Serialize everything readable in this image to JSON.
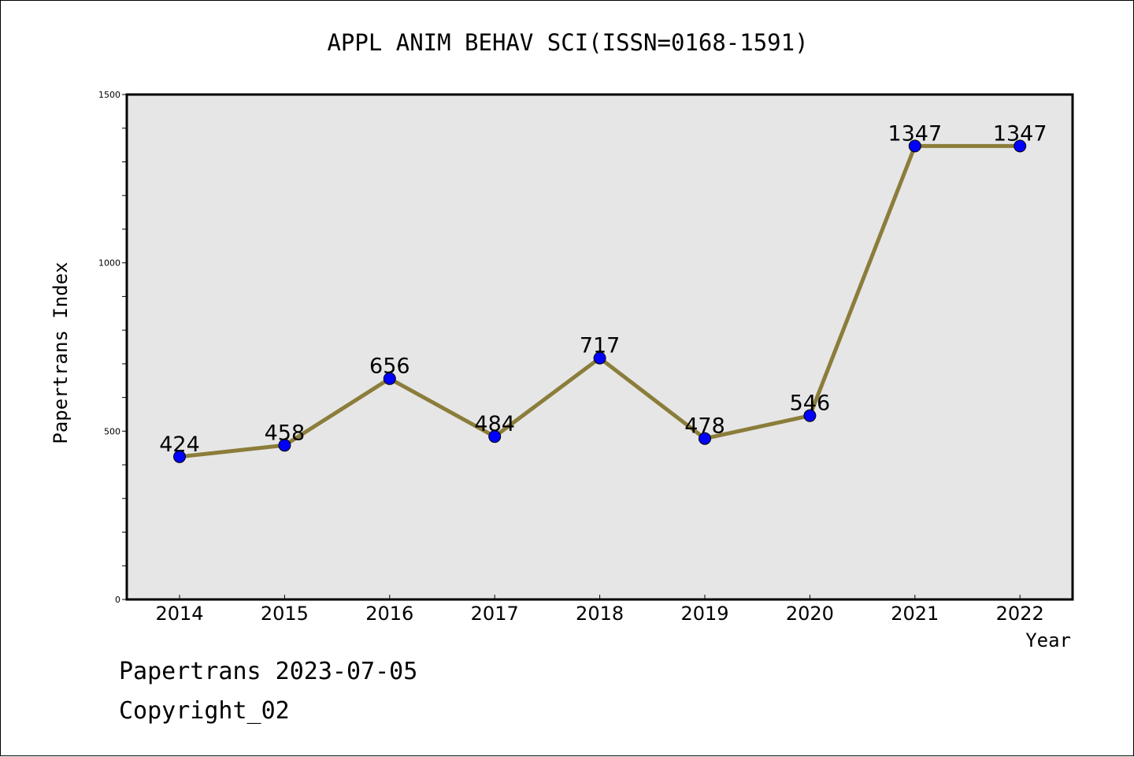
{
  "chart_data": {
    "type": "line",
    "title": "APPL ANIM BEHAV SCI(ISSN=0168-1591)",
    "xlabel": "Year",
    "ylabel": "Papertrans Index",
    "categories": [
      "2014",
      "2015",
      "2016",
      "2017",
      "2018",
      "2019",
      "2020",
      "2021",
      "2022"
    ],
    "series": [
      {
        "values": [
          424,
          458,
          656,
          484,
          717,
          478,
          546,
          1347,
          1347
        ]
      }
    ],
    "data_labels": [
      "424",
      "458",
      "656",
      "484",
      "717",
      "478",
      "546",
      "1347",
      "1347"
    ],
    "ylim": [
      0,
      1500
    ],
    "y_ticks": [
      "0",
      "500",
      "1000",
      "1500"
    ],
    "y_tick_values": [
      0,
      500,
      1000,
      1500
    ],
    "y_minor_step": 100,
    "grid": false,
    "legend": "none",
    "line_color": "#8b7d3a",
    "marker_color": "#0000ff",
    "plot_background": "#e6e6e6"
  },
  "footer": {
    "line1": "Papertrans 2023-07-05",
    "line2": "Copyright_02"
  }
}
